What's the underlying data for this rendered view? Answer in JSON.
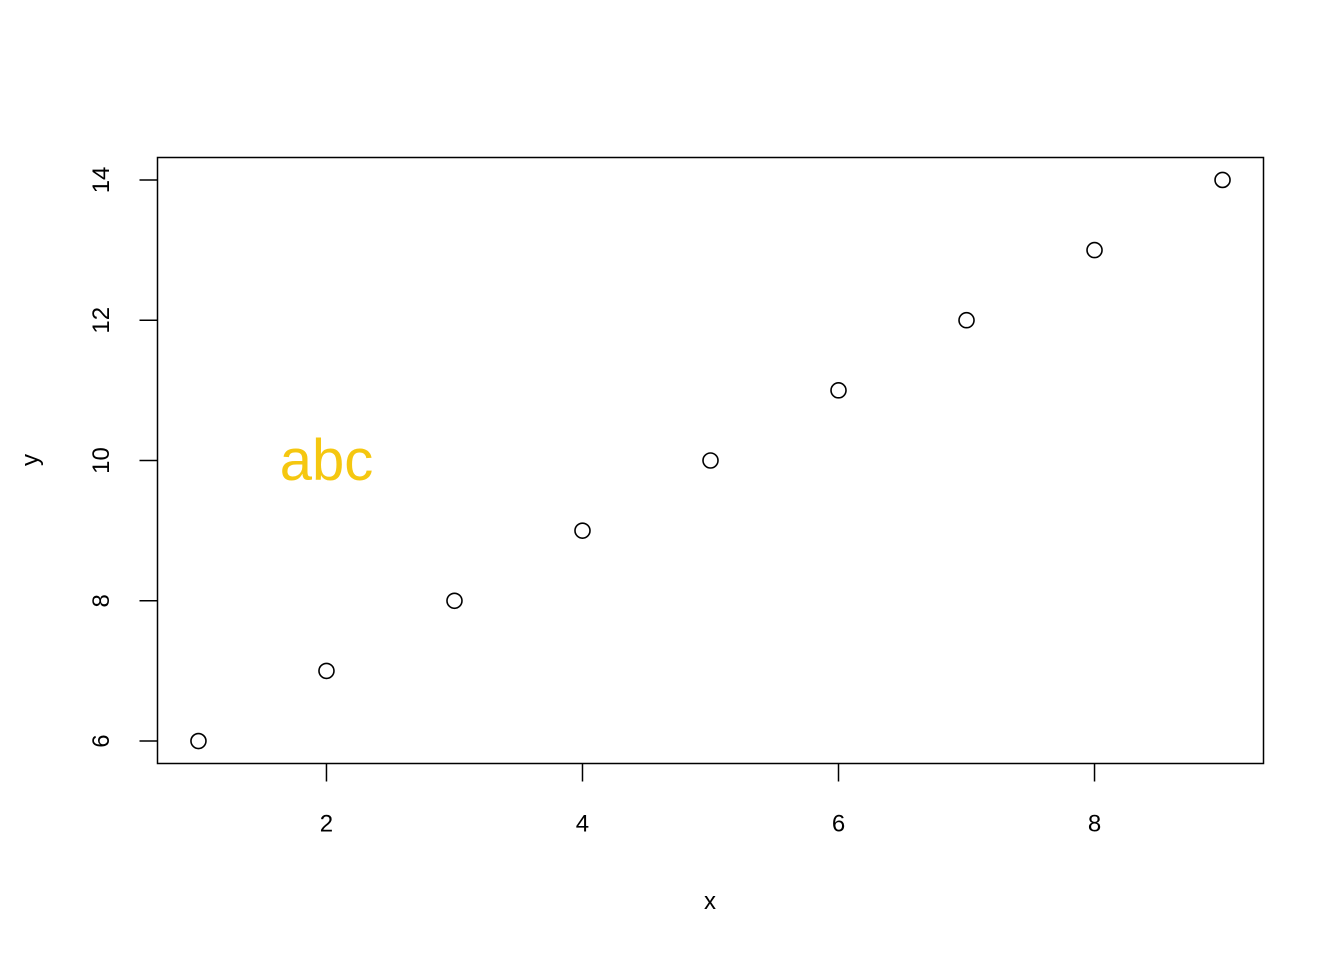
{
  "chart_data": {
    "type": "scatter",
    "title": "",
    "xlabel": "x",
    "ylabel": "y",
    "x": [
      1,
      2,
      3,
      4,
      5,
      6,
      7,
      8,
      9
    ],
    "y": [
      6,
      7,
      8,
      9,
      10,
      11,
      12,
      13,
      14
    ],
    "xlim": [
      0.68,
      9.32
    ],
    "ylim": [
      5.68,
      14.32
    ],
    "xticks": [
      2,
      4,
      6,
      8
    ],
    "yticks": [
      6,
      8,
      10,
      12,
      14
    ],
    "marker": "open-circle",
    "grid": false,
    "legend": "none",
    "annotations": [
      {
        "text": "abc",
        "x": 2,
        "y": 10,
        "color": "#f5c710"
      }
    ]
  }
}
